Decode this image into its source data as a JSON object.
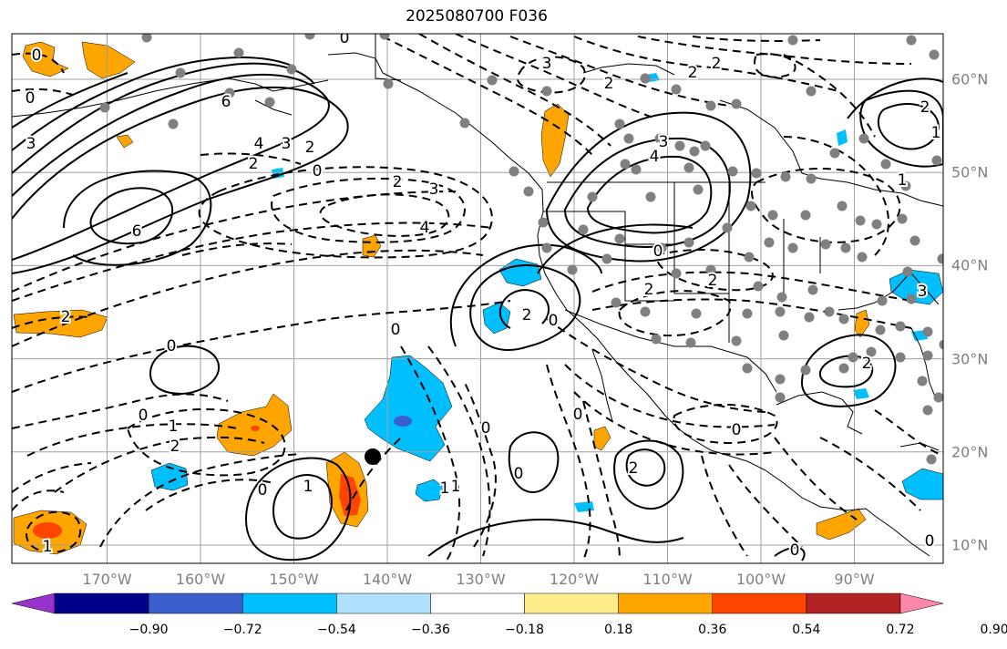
{
  "title": "2025080700 F036",
  "lon_labels": [
    {
      "deg": -170,
      "text": "170°W"
    },
    {
      "deg": -160,
      "text": "160°W"
    },
    {
      "deg": -150,
      "text": "150°W"
    },
    {
      "deg": -140,
      "text": "140°W"
    },
    {
      "deg": -130,
      "text": "130°W"
    },
    {
      "deg": -120,
      "text": "120°W"
    },
    {
      "deg": -110,
      "text": "110°W"
    },
    {
      "deg": -100,
      "text": "100°W"
    },
    {
      "deg": -90,
      "text": "90°W"
    }
  ],
  "lat_labels": [
    {
      "deg": 60,
      "text": "60°N"
    },
    {
      "deg": 50,
      "text": "50°N"
    },
    {
      "deg": 40,
      "text": "40°N"
    },
    {
      "deg": 30,
      "text": "30°N"
    },
    {
      "deg": 20,
      "text": "20°N"
    },
    {
      "deg": 10,
      "text": "10°N"
    }
  ],
  "colorbar": {
    "colors": [
      "#9932cc",
      "#00008b",
      "#3a5fcd",
      "#00bfff",
      "#b0e2ff",
      "#ffffff",
      "#ffec8b",
      "#ffa500",
      "#ff4500",
      "#b22222",
      "#ff88aa"
    ],
    "ticks": [
      "−0.90",
      "−0.72",
      "−0.54",
      "−0.36",
      "−0.18",
      "0.18",
      "0.36",
      "0.54",
      "0.72",
      "0.90"
    ]
  },
  "contour_labels": [
    {
      "text": "0"
    },
    {
      "text": "0"
    },
    {
      "text": "3"
    },
    {
      "text": "6"
    },
    {
      "text": "4"
    },
    {
      "text": "3"
    },
    {
      "text": "2"
    },
    {
      "text": "2"
    },
    {
      "text": "0"
    },
    {
      "text": "6"
    },
    {
      "text": "2"
    },
    {
      "text": "3"
    },
    {
      "text": "4"
    },
    {
      "text": "2"
    },
    {
      "text": "0"
    },
    {
      "text": "0"
    },
    {
      "text": "0"
    },
    {
      "text": "1"
    },
    {
      "text": "2"
    },
    {
      "text": "0"
    },
    {
      "text": "1"
    },
    {
      "text": "1"
    },
    {
      "text": "1"
    },
    {
      "text": "0"
    },
    {
      "text": "0"
    },
    {
      "text": "2"
    },
    {
      "text": "2"
    },
    {
      "text": "0"
    },
    {
      "text": "3"
    },
    {
      "text": "4"
    },
    {
      "text": "0"
    },
    {
      "text": "2"
    },
    {
      "text": "2"
    },
    {
      "text": "2"
    },
    {
      "text": "3"
    },
    {
      "text": "2"
    },
    {
      "text": "2"
    },
    {
      "text": "0"
    },
    {
      "text": "2"
    },
    {
      "text": "1"
    },
    {
      "text": "1"
    },
    {
      "text": "0"
    },
    {
      "text": "3"
    },
    {
      "text": "2"
    },
    {
      "text": "1"
    },
    {
      "text": "0"
    },
    {
      "text": "0"
    },
    {
      "text": "0"
    }
  ]
}
